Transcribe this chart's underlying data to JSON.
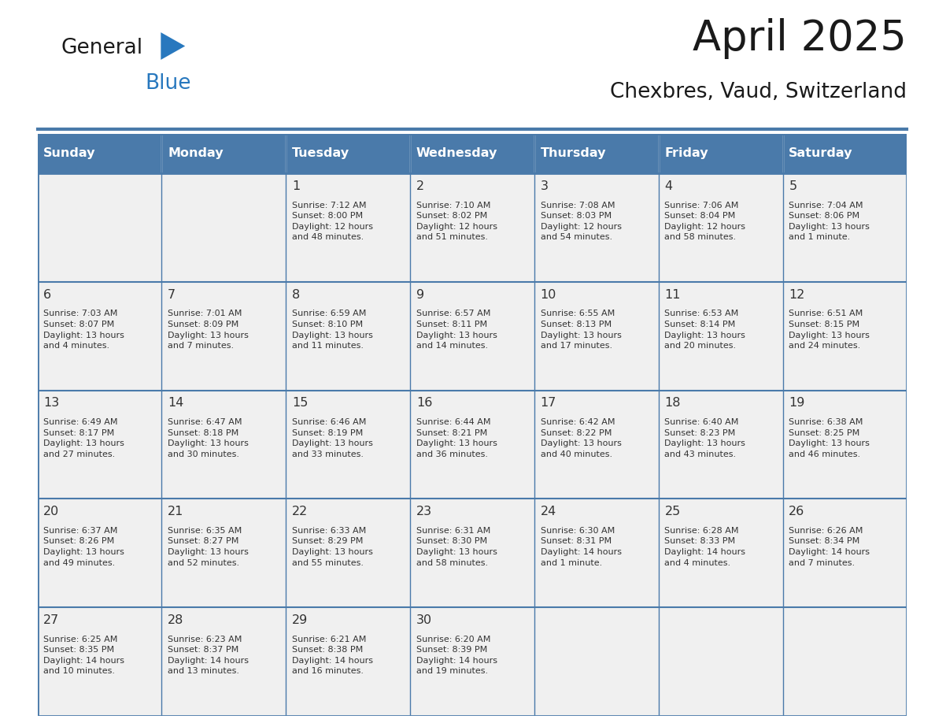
{
  "title": "April 2025",
  "subtitle": "Chexbres, Vaud, Switzerland",
  "header_color": "#4a7aaa",
  "header_text_color": "#ffffff",
  "cell_bg_color": "#f0f0f0",
  "text_color": "#333333",
  "border_color": "#4a7aaa",
  "days_of_week": [
    "Sunday",
    "Monday",
    "Tuesday",
    "Wednesday",
    "Thursday",
    "Friday",
    "Saturday"
  ],
  "weeks": [
    [
      {
        "day": "",
        "info": ""
      },
      {
        "day": "",
        "info": ""
      },
      {
        "day": "1",
        "info": "Sunrise: 7:12 AM\nSunset: 8:00 PM\nDaylight: 12 hours\nand 48 minutes."
      },
      {
        "day": "2",
        "info": "Sunrise: 7:10 AM\nSunset: 8:02 PM\nDaylight: 12 hours\nand 51 minutes."
      },
      {
        "day": "3",
        "info": "Sunrise: 7:08 AM\nSunset: 8:03 PM\nDaylight: 12 hours\nand 54 minutes."
      },
      {
        "day": "4",
        "info": "Sunrise: 7:06 AM\nSunset: 8:04 PM\nDaylight: 12 hours\nand 58 minutes."
      },
      {
        "day": "5",
        "info": "Sunrise: 7:04 AM\nSunset: 8:06 PM\nDaylight: 13 hours\nand 1 minute."
      }
    ],
    [
      {
        "day": "6",
        "info": "Sunrise: 7:03 AM\nSunset: 8:07 PM\nDaylight: 13 hours\nand 4 minutes."
      },
      {
        "day": "7",
        "info": "Sunrise: 7:01 AM\nSunset: 8:09 PM\nDaylight: 13 hours\nand 7 minutes."
      },
      {
        "day": "8",
        "info": "Sunrise: 6:59 AM\nSunset: 8:10 PM\nDaylight: 13 hours\nand 11 minutes."
      },
      {
        "day": "9",
        "info": "Sunrise: 6:57 AM\nSunset: 8:11 PM\nDaylight: 13 hours\nand 14 minutes."
      },
      {
        "day": "10",
        "info": "Sunrise: 6:55 AM\nSunset: 8:13 PM\nDaylight: 13 hours\nand 17 minutes."
      },
      {
        "day": "11",
        "info": "Sunrise: 6:53 AM\nSunset: 8:14 PM\nDaylight: 13 hours\nand 20 minutes."
      },
      {
        "day": "12",
        "info": "Sunrise: 6:51 AM\nSunset: 8:15 PM\nDaylight: 13 hours\nand 24 minutes."
      }
    ],
    [
      {
        "day": "13",
        "info": "Sunrise: 6:49 AM\nSunset: 8:17 PM\nDaylight: 13 hours\nand 27 minutes."
      },
      {
        "day": "14",
        "info": "Sunrise: 6:47 AM\nSunset: 8:18 PM\nDaylight: 13 hours\nand 30 minutes."
      },
      {
        "day": "15",
        "info": "Sunrise: 6:46 AM\nSunset: 8:19 PM\nDaylight: 13 hours\nand 33 minutes."
      },
      {
        "day": "16",
        "info": "Sunrise: 6:44 AM\nSunset: 8:21 PM\nDaylight: 13 hours\nand 36 minutes."
      },
      {
        "day": "17",
        "info": "Sunrise: 6:42 AM\nSunset: 8:22 PM\nDaylight: 13 hours\nand 40 minutes."
      },
      {
        "day": "18",
        "info": "Sunrise: 6:40 AM\nSunset: 8:23 PM\nDaylight: 13 hours\nand 43 minutes."
      },
      {
        "day": "19",
        "info": "Sunrise: 6:38 AM\nSunset: 8:25 PM\nDaylight: 13 hours\nand 46 minutes."
      }
    ],
    [
      {
        "day": "20",
        "info": "Sunrise: 6:37 AM\nSunset: 8:26 PM\nDaylight: 13 hours\nand 49 minutes."
      },
      {
        "day": "21",
        "info": "Sunrise: 6:35 AM\nSunset: 8:27 PM\nDaylight: 13 hours\nand 52 minutes."
      },
      {
        "day": "22",
        "info": "Sunrise: 6:33 AM\nSunset: 8:29 PM\nDaylight: 13 hours\nand 55 minutes."
      },
      {
        "day": "23",
        "info": "Sunrise: 6:31 AM\nSunset: 8:30 PM\nDaylight: 13 hours\nand 58 minutes."
      },
      {
        "day": "24",
        "info": "Sunrise: 6:30 AM\nSunset: 8:31 PM\nDaylight: 14 hours\nand 1 minute."
      },
      {
        "day": "25",
        "info": "Sunrise: 6:28 AM\nSunset: 8:33 PM\nDaylight: 14 hours\nand 4 minutes."
      },
      {
        "day": "26",
        "info": "Sunrise: 6:26 AM\nSunset: 8:34 PM\nDaylight: 14 hours\nand 7 minutes."
      }
    ],
    [
      {
        "day": "27",
        "info": "Sunrise: 6:25 AM\nSunset: 8:35 PM\nDaylight: 14 hours\nand 10 minutes."
      },
      {
        "day": "28",
        "info": "Sunrise: 6:23 AM\nSunset: 8:37 PM\nDaylight: 14 hours\nand 13 minutes."
      },
      {
        "day": "29",
        "info": "Sunrise: 6:21 AM\nSunset: 8:38 PM\nDaylight: 14 hours\nand 16 minutes."
      },
      {
        "day": "30",
        "info": "Sunrise: 6:20 AM\nSunset: 8:39 PM\nDaylight: 14 hours\nand 19 minutes."
      },
      {
        "day": "",
        "info": ""
      },
      {
        "day": "",
        "info": ""
      },
      {
        "day": "",
        "info": ""
      }
    ]
  ],
  "logo_general_color": "#1a1a1a",
  "logo_blue_color": "#2878be",
  "logo_triangle_color": "#2878be",
  "figsize": [
    11.88,
    9.18
  ],
  "dpi": 100
}
